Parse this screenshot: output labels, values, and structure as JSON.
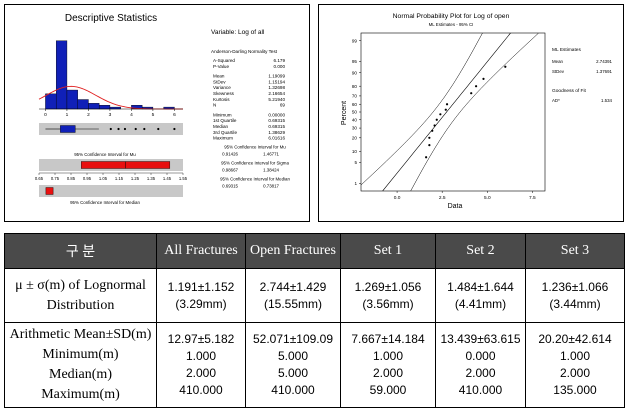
{
  "left_panel": {
    "title": "Descriptive Statistics",
    "variable": "Variable: Log of all",
    "ad_test_title": "Anderson-Darling Normality Test",
    "stats": [
      {
        "label": "A-Squared",
        "value": "6.179"
      },
      {
        "label": "P-Value",
        "value": "0.000"
      },
      {
        "label": "",
        "value": ""
      },
      {
        "label": "Mean",
        "value": "1.19099"
      },
      {
        "label": "StDev",
        "value": "1.15194"
      },
      {
        "label": "Variance",
        "value": "1.32698"
      },
      {
        "label": "Skewness",
        "value": "2.16654"
      },
      {
        "label": "Kurtosis",
        "value": "5.21940"
      },
      {
        "label": "N",
        "value": "69"
      },
      {
        "label": "",
        "value": ""
      },
      {
        "label": "Minimum",
        "value": "0.00000"
      },
      {
        "label": "1st Quartile",
        "value": "0.69315"
      },
      {
        "label": "Median",
        "value": "0.69315"
      },
      {
        "label": "3rd Quartile",
        "value": "1.38629"
      },
      {
        "label": "Maximum",
        "value": "6.01616"
      }
    ],
    "ci_mu_title": "95% Confidence Interval for Mu",
    "ci_mu_values": [
      "0.91426",
      "1.46771"
    ],
    "ci_sigma_title": "95% Confidence Interval for Sigma",
    "ci_sigma_values": [
      "0.98667",
      "1.38424"
    ],
    "ci_median_title": "95% Confidence Interval for Median",
    "ci_median_values": [
      "0.69315",
      "0.73817"
    ],
    "ci_mu_chart_label": "95% Confidence Interval for Mu",
    "ci_median_chart_label": "95% Confidence Interval for Median",
    "colors": {
      "bar": "#1020b8",
      "curve": "#e02020",
      "ci": "#e81010",
      "band": "#c8c8c8"
    }
  },
  "chart_data": [
    {
      "type": "bar",
      "title": "Descriptive Statistics",
      "categories": [
        "0-0.5",
        "0.5-1",
        "1-1.5",
        "1.5-2",
        "2-2.5",
        "2.5-3",
        "3-3.5",
        "3.5-4",
        "4-4.5",
        "4.5-5",
        "5-5.5",
        "5.5-6"
      ],
      "values": [
        8,
        36,
        10,
        5,
        3,
        2,
        1,
        0,
        2,
        1,
        0,
        1
      ],
      "xticks": [
        "0",
        "1",
        "2",
        "3",
        "4",
        "5",
        "6"
      ],
      "xlim": [
        -0.3,
        6.4
      ],
      "ylim": [
        0,
        38
      ],
      "normal_fit": {
        "mean": 1.19099,
        "stdev": 1.15194,
        "n": 69
      },
      "boxplot": {
        "q1": 0.69315,
        "median": 0.69315,
        "q3": 1.38629,
        "whisker_low": 0.0,
        "whisker_high": 2.485,
        "outliers": [
          3.04,
          3.4,
          3.7,
          4.2,
          4.6,
          5.25,
          6.0
        ]
      },
      "ci_mu": {
        "low": 0.91426,
        "high": 1.46771,
        "mean": 1.19099
      },
      "ci_median": {
        "low": 0.69315,
        "high": 0.73817
      },
      "ci_axis_ticks": [
        "0.65",
        "0.75",
        "0.85",
        "0.95",
        "1.05",
        "1.15",
        "1.25",
        "1.35",
        "1.45",
        "1.55"
      ],
      "ci_axis_range": [
        0.65,
        1.55
      ]
    },
    {
      "type": "line",
      "title": "Normal Probability Plot for Log of open",
      "subtitle": "ML Estimates - 95% CI",
      "xlabel": "Data",
      "ylabel": "Percent",
      "xticks": [
        "0.0",
        "2.5",
        "5.0",
        "7.5"
      ],
      "xtick_values": [
        0,
        2.5,
        5,
        7.5
      ],
      "xlim": [
        -2,
        8.2
      ],
      "yticks": [
        "1",
        "5",
        "10",
        "20",
        "30",
        "40",
        "50",
        "60",
        "70",
        "80",
        "90",
        "95",
        "99"
      ],
      "ylim": [
        0.5,
        99.5
      ],
      "fit": {
        "mean": 2.74391,
        "stdev": 1.37691
      },
      "points": [
        {
          "x": 1.61,
          "y": 7
        },
        {
          "x": 1.79,
          "y": 14
        },
        {
          "x": 1.79,
          "y": 20
        },
        {
          "x": 1.95,
          "y": 27
        },
        {
          "x": 2.08,
          "y": 33
        },
        {
          "x": 2.2,
          "y": 40
        },
        {
          "x": 2.4,
          "y": 47
        },
        {
          "x": 2.7,
          "y": 53
        },
        {
          "x": 2.77,
          "y": 60
        },
        {
          "x": 4.11,
          "y": 73
        },
        {
          "x": 4.38,
          "y": 80
        },
        {
          "x": 4.79,
          "y": 86
        },
        {
          "x": 6.0,
          "y": 93
        }
      ],
      "legend": {
        "title": "ML Estimates",
        "rows": [
          {
            "label": "Mean",
            "value": "2.74391"
          },
          {
            "label": "StDev",
            "value": "1.37691"
          }
        ],
        "gof_title": "Goodness of Fit",
        "gof_rows": [
          {
            "label": "AD*",
            "value": "1.534"
          }
        ]
      }
    }
  ],
  "table": {
    "headers": [
      "구  분",
      "All Fractures",
      "Open Fractures",
      "Set 1",
      "Set 2",
      "Set 3"
    ],
    "rows": [
      {
        "label": [
          "μ ± σ(m) of Lognormal",
          "Distribution"
        ],
        "cells": [
          [
            "1.191±1.152",
            "(3.29mm)"
          ],
          [
            "2.744±1.429",
            "(15.55mm)"
          ],
          [
            "1.269±1.056",
            "(3.56mm)"
          ],
          [
            "1.484±1.644",
            "(4.41mm)"
          ],
          [
            "1.236±1.066",
            "(3.44mm)"
          ]
        ]
      },
      {
        "label": [
          "Arithmetic Mean±SD(m)",
          "Minimum(m)",
          "Median(m)",
          "Maximum(m)"
        ],
        "cells": [
          [
            "12.97±5.182",
            "1.000",
            "2.000",
            "410.000"
          ],
          [
            "52.071±109.09",
            "5.000",
            "5.000",
            "410.000"
          ],
          [
            "7.667±14.184",
            "1.000",
            "2.000",
            "59.000"
          ],
          [
            "13.439±63.615",
            "0.000",
            "2.000",
            "410.000"
          ],
          [
            "20.20±42.614",
            "1.000",
            "2.000",
            "135.000"
          ]
        ]
      }
    ]
  }
}
